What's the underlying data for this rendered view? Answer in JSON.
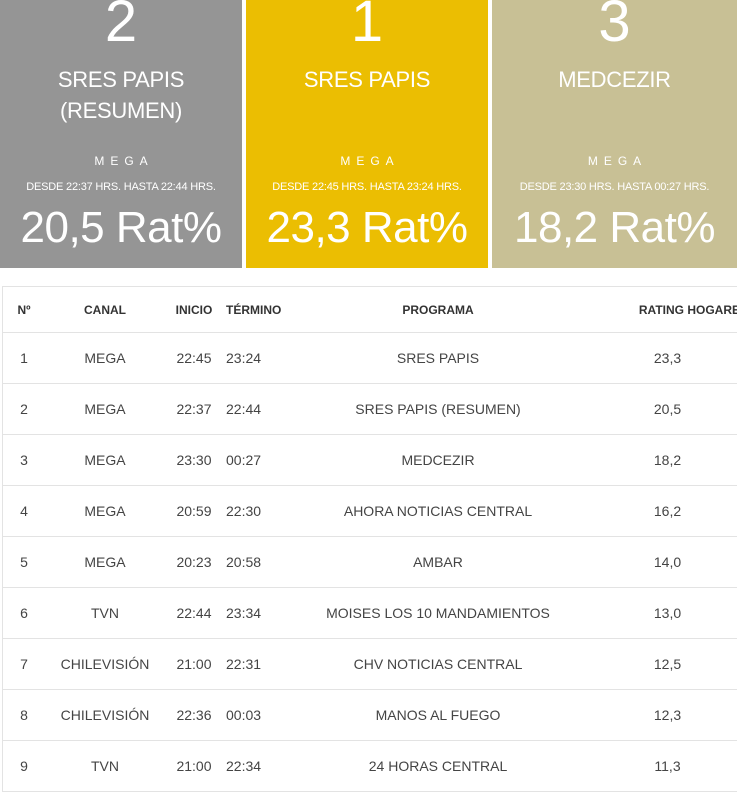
{
  "colors": {
    "card_1": "#959595",
    "card_2": "#ebbe02",
    "card_3": "#c8c095"
  },
  "cards": [
    {
      "rank": "2",
      "program_line1": "SRES PAPIS",
      "program_line2": "(RESUMEN)",
      "channel": "MEGA",
      "time": "DESDE 22:37 HRS. HASTA 22:44 HRS.",
      "rating": "20,5 Rat%"
    },
    {
      "rank": "1",
      "program_line1": "SRES PAPIS",
      "program_line2": "",
      "channel": "MEGA",
      "time": "DESDE 22:45 HRS. HASTA 23:24 HRS.",
      "rating": "23,3 Rat%"
    },
    {
      "rank": "3",
      "program_line1": "MEDCEZIR",
      "program_line2": "",
      "channel": "MEGA",
      "time": "DESDE 23:30 HRS. HASTA 00:27 HRS.",
      "rating": "18,2 Rat%"
    }
  ],
  "table": {
    "headers": {
      "n": "Nº",
      "canal": "CANAL",
      "inicio": "INICIO",
      "termino": "TÉRMINO",
      "programa": "PROGRAMA",
      "rating": "RATING HOGARES"
    },
    "rows": [
      {
        "n": "1",
        "canal": "MEGA",
        "inicio": "22:45",
        "termino": "23:24",
        "programa": "SRES PAPIS",
        "rating": "23,3"
      },
      {
        "n": "2",
        "canal": "MEGA",
        "inicio": "22:37",
        "termino": "22:44",
        "programa": "SRES PAPIS (RESUMEN)",
        "rating": "20,5"
      },
      {
        "n": "3",
        "canal": "MEGA",
        "inicio": "23:30",
        "termino": "00:27",
        "programa": "MEDCEZIR",
        "rating": "18,2"
      },
      {
        "n": "4",
        "canal": "MEGA",
        "inicio": "20:59",
        "termino": "22:30",
        "programa": "AHORA NOTICIAS CENTRAL",
        "rating": "16,2"
      },
      {
        "n": "5",
        "canal": "MEGA",
        "inicio": "20:23",
        "termino": "20:58",
        "programa": "AMBAR",
        "rating": "14,0"
      },
      {
        "n": "6",
        "canal": "TVN",
        "inicio": "22:44",
        "termino": "23:34",
        "programa": "MOISES LOS 10 MANDAMIENTOS",
        "rating": "13,0"
      },
      {
        "n": "7",
        "canal": "CHILEVISIÓN",
        "inicio": "21:00",
        "termino": "22:31",
        "programa": "CHV NOTICIAS CENTRAL",
        "rating": "12,5"
      },
      {
        "n": "8",
        "canal": "CHILEVISIÓN",
        "inicio": "22:36",
        "termino": "00:03",
        "programa": "MANOS AL FUEGO",
        "rating": "12,3"
      },
      {
        "n": "9",
        "canal": "TVN",
        "inicio": "21:00",
        "termino": "22:34",
        "programa": "24 HORAS CENTRAL",
        "rating": "11,3"
      }
    ]
  }
}
